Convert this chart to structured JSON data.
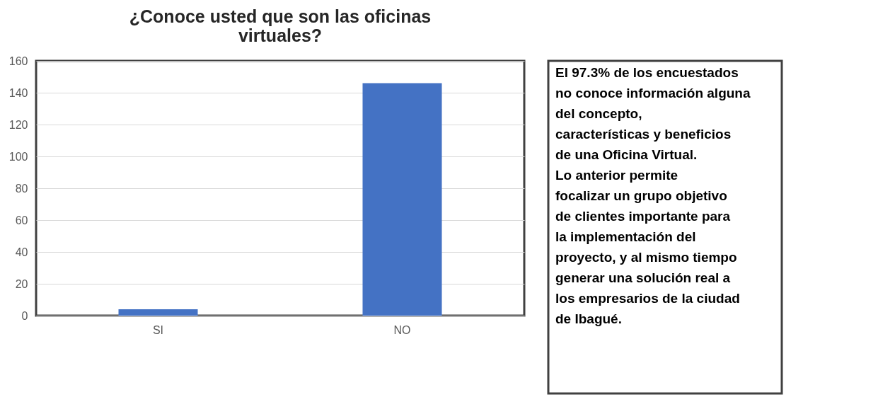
{
  "chart_data": [
    {
      "type": "bar",
      "title": "¿Conoce usted que son las oficinas virtuales?",
      "categories": [
        "SI",
        "NO"
      ],
      "values": [
        4,
        146
      ],
      "color": "#4472c4",
      "ylim": [
        0,
        160
      ],
      "yticks": [
        0,
        20,
        40,
        60,
        80,
        100,
        120,
        140,
        160
      ],
      "grid": "y"
    },
    {
      "type": "other",
      "annotations": [
        "El 97.3% de los encuestados no conoce información alguna del concepto, características y beneficios de una Oficina Virtual.",
        "Lo anterior permite focalizar un grupo objetivo de clientes importante para la implementación del proyecto, y al mismo tiempo generar una solución real a los empresarios de la ciudad de Ibagué."
      ]
    }
  ]
}
